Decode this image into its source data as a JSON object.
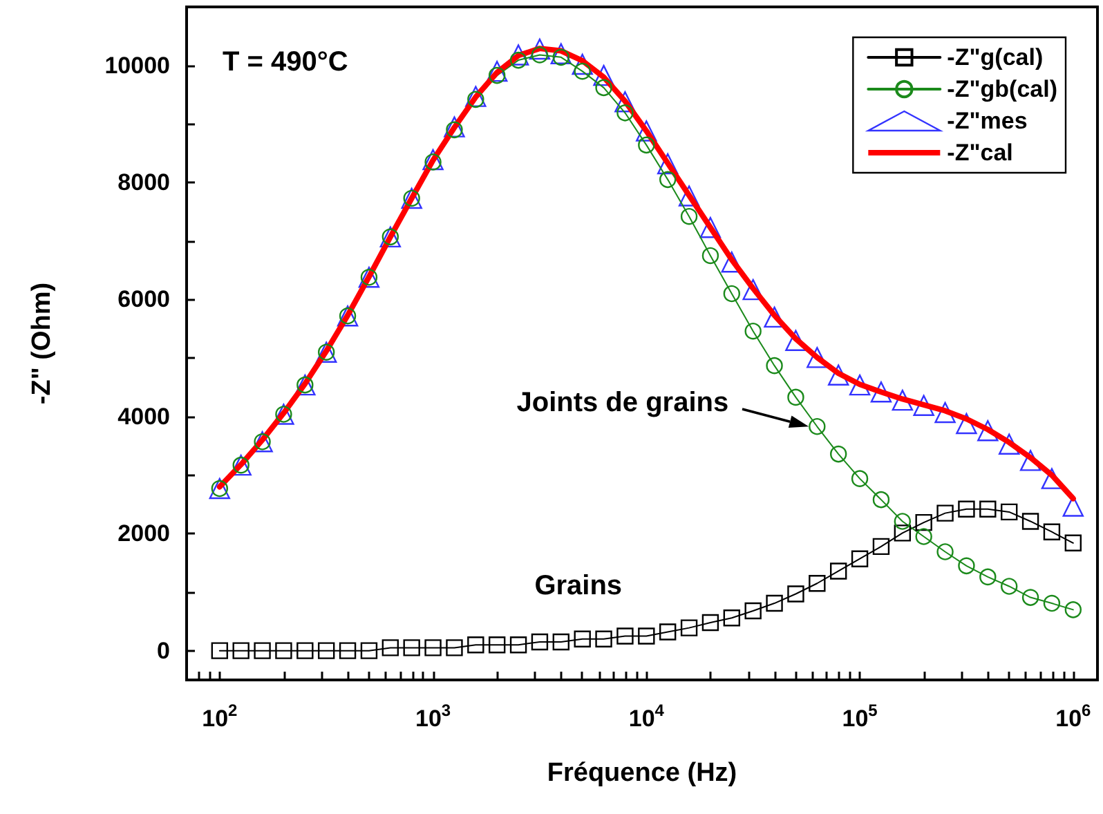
{
  "chart_data": {
    "type": "line",
    "xlabel": "Fréquence (Hz)",
    "ylabel": "-Z\" (Ohm)",
    "annotations": [
      "T = 490°C",
      "Joints de grains",
      "Grains"
    ],
    "log": "x",
    "grid": false,
    "legend": "top right",
    "xlim": [
      70,
      1300000
    ],
    "ylim": [
      -500,
      11000
    ],
    "xticks": [
      {
        "value": 80,
        "label": null
      },
      {
        "value": 90,
        "label": null
      },
      {
        "value": 100,
        "label": "10$^{2}$"
      },
      {
        "value": 200,
        "label": null
      },
      {
        "value": 300,
        "label": null
      },
      {
        "value": 400,
        "label": null
      },
      {
        "value": 500,
        "label": null
      },
      {
        "value": 600,
        "label": null
      },
      {
        "value": 700,
        "label": null
      },
      {
        "value": 800,
        "label": null
      },
      {
        "value": 900,
        "label": null
      },
      {
        "value": 1000,
        "label": "10$^{3}$"
      },
      {
        "value": 2000,
        "label": null
      },
      {
        "value": 3000,
        "label": null
      },
      {
        "value": 4000,
        "label": null
      },
      {
        "value": 5000,
        "label": null
      },
      {
        "value": 6000,
        "label": null
      },
      {
        "value": 7000,
        "label": null
      },
      {
        "value": 8000,
        "label": null
      },
      {
        "value": 9000,
        "label": null
      },
      {
        "value": 10000,
        "label": "10$^{4}$"
      },
      {
        "value": 20000,
        "label": null
      },
      {
        "value": 30000,
        "label": null
      },
      {
        "value": 40000,
        "label": null
      },
      {
        "value": 50000,
        "label": null
      },
      {
        "value": 60000,
        "label": null
      },
      {
        "value": 70000,
        "label": null
      },
      {
        "value": 80000,
        "label": null
      },
      {
        "value": 90000,
        "label": null
      },
      {
        "value": 100000,
        "label": "10$^{5}$"
      },
      {
        "value": 200000,
        "label": null
      },
      {
        "value": 300000,
        "label": null
      },
      {
        "value": 400000,
        "label": null
      },
      {
        "value": 500000,
        "label": null
      },
      {
        "value": 600000,
        "label": null
      },
      {
        "value": 700000,
        "label": null
      },
      {
        "value": 800000,
        "label": null
      },
      {
        "value": 900000,
        "label": null
      },
      {
        "value": 1000000,
        "label": "10$^{6}$"
      }
    ],
    "yticks": [
      0,
      {
        "value": 1000,
        "label": null
      },
      2000,
      {
        "value": 3000,
        "label": null
      },
      4000,
      {
        "value": 5000,
        "label": null
      },
      6000,
      {
        "value": 7000,
        "label": null
      },
      8000,
      {
        "value": 9000,
        "label": null
      },
      10000
    ],
    "x": [
      100,
      125.9,
      158.5,
      199.5,
      251.2,
      316.2,
      398.1,
      501.2,
      631,
      794.3,
      1000,
      1259,
      1585,
      1995,
      2512,
      3162,
      3981,
      5012,
      6310,
      7943,
      10000,
      12590,
      15850,
      19950,
      25120,
      31620,
      39810,
      50120,
      63100,
      79430,
      100000,
      125900,
      158500,
      199500,
      251200,
      316200,
      398100,
      501200,
      631000,
      794300,
      1000000
    ],
    "series": [
      {
        "name": "-Z\"g(cal)",
        "marker": "square",
        "color": "#000000",
        "values": [
          0,
          0,
          0,
          0,
          0,
          0,
          0,
          0,
          50,
          50,
          50,
          50,
          100,
          100,
          100,
          150,
          150,
          200,
          200,
          250,
          250,
          320,
          390,
          480,
          560,
          680,
          810,
          970,
          1150,
          1360,
          1570,
          1780,
          2010,
          2190,
          2350,
          2420,
          2420,
          2370,
          2210,
          2030,
          1840
        ]
      },
      {
        "name": "-Z\"gb(cal)",
        "marker": "circle",
        "color": "#1b8a1b",
        "values": [
          2770,
          3170,
          3570,
          4040,
          4540,
          5100,
          5720,
          6380,
          7070,
          7730,
          8350,
          8900,
          9420,
          9830,
          10090,
          10180,
          10140,
          9900,
          9620,
          9190,
          8640,
          8050,
          7420,
          6750,
          6100,
          5460,
          4870,
          4330,
          3830,
          3360,
          2940,
          2580,
          2210,
          1950,
          1690,
          1450,
          1260,
          1100,
          910,
          810,
          700
        ]
      },
      {
        "name": "-Z\"mes",
        "type": "scatter",
        "marker": "triangle",
        "color": "#0000ff",
        "values": [
          2770,
          3170,
          3570,
          4040,
          4540,
          5100,
          5720,
          6380,
          7070,
          7730,
          8390,
          8950,
          9470,
          9900,
          10180,
          10280,
          10200,
          10020,
          9830,
          9380,
          8880,
          8320,
          7770,
          7230,
          6640,
          6170,
          5700,
          5300,
          5010,
          4710,
          4540,
          4420,
          4280,
          4190,
          4070,
          3880,
          3760,
          3530,
          3250,
          2940,
          2470
        ]
      },
      {
        "name": "-Z\"cal",
        "marker": "none",
        "color": "#ff0000",
        "values": [
          2800,
          3180,
          3600,
          4060,
          4560,
          5120,
          5730,
          6390,
          7070,
          7730,
          8380,
          8940,
          9460,
          9880,
          10170,
          10290,
          10250,
          10080,
          9800,
          9390,
          8880,
          8330,
          7780,
          7230,
          6680,
          6190,
          5730,
          5330,
          5010,
          4740,
          4550,
          4420,
          4300,
          4200,
          4100,
          3960,
          3780,
          3560,
          3300,
          3000,
          2600
        ]
      }
    ]
  }
}
